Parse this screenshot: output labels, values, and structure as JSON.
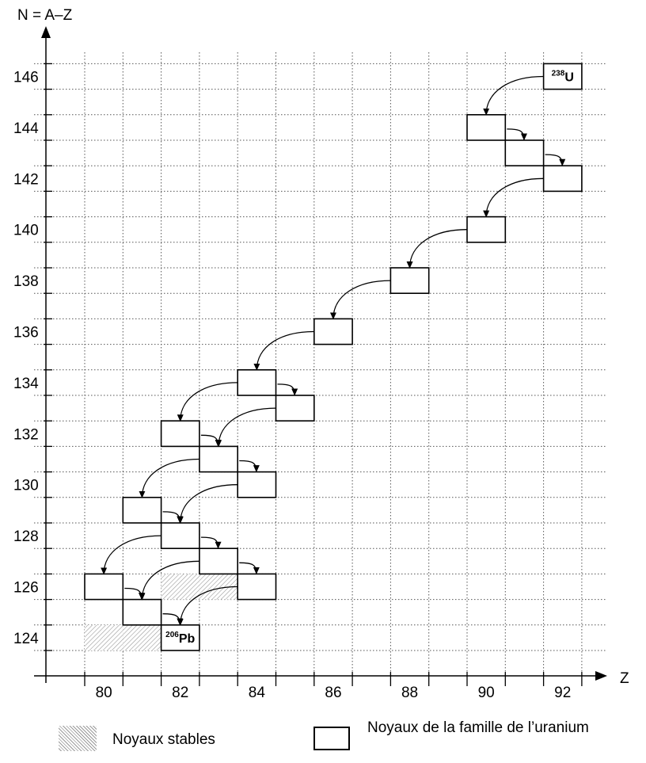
{
  "chart_data": {
    "type": "scatter",
    "x_axis_label": "Z",
    "y_axis_label": "N = A–Z",
    "x_ticks": [
      "80",
      "82",
      "84",
      "86",
      "88",
      "90",
      "92"
    ],
    "y_ticks": [
      "124",
      "126",
      "128",
      "130",
      "132",
      "134",
      "136",
      "138",
      "140",
      "142",
      "144",
      "146"
    ],
    "xlim": [
      79,
      93
    ],
    "ylim": [
      123,
      147
    ],
    "grid": true,
    "uranium_family": [
      {
        "Z": 92,
        "N": 146,
        "mass": "238",
        "symbol": "U"
      },
      {
        "Z": 90,
        "N": 144
      },
      {
        "Z": 91,
        "N": 143
      },
      {
        "Z": 92,
        "N": 142
      },
      {
        "Z": 90,
        "N": 140
      },
      {
        "Z": 88,
        "N": 138
      },
      {
        "Z": 86,
        "N": 136
      },
      {
        "Z": 84,
        "N": 134
      },
      {
        "Z": 85,
        "N": 133
      },
      {
        "Z": 82,
        "N": 132
      },
      {
        "Z": 83,
        "N": 131
      },
      {
        "Z": 84,
        "N": 130
      },
      {
        "Z": 81,
        "N": 129
      },
      {
        "Z": 82,
        "N": 128
      },
      {
        "Z": 83,
        "N": 127
      },
      {
        "Z": 80,
        "N": 126
      },
      {
        "Z": 84,
        "N": 126
      },
      {
        "Z": 81,
        "N": 125
      },
      {
        "Z": 82,
        "N": 124,
        "mass": "206",
        "symbol": "Pb"
      }
    ],
    "stable_nuclei": [
      {
        "Z": 80,
        "N": 124
      },
      {
        "Z": 81,
        "N": 124
      },
      {
        "Z": 82,
        "N": 124
      },
      {
        "Z": 82,
        "N": 126
      },
      {
        "Z": 83,
        "N": 126
      }
    ],
    "alpha_decays": [
      {
        "from": [
          92,
          146
        ],
        "to": [
          90,
          144
        ]
      },
      {
        "from": [
          92,
          142
        ],
        "to": [
          90,
          140
        ]
      },
      {
        "from": [
          90,
          140
        ],
        "to": [
          88,
          138
        ]
      },
      {
        "from": [
          88,
          138
        ],
        "to": [
          86,
          136
        ]
      },
      {
        "from": [
          86,
          136
        ],
        "to": [
          84,
          134
        ]
      },
      {
        "from": [
          84,
          134
        ],
        "to": [
          82,
          132
        ]
      },
      {
        "from": [
          85,
          133
        ],
        "to": [
          83,
          131
        ]
      },
      {
        "from": [
          83,
          131
        ],
        "to": [
          81,
          129
        ]
      },
      {
        "from": [
          84,
          130
        ],
        "to": [
          82,
          128
        ]
      },
      {
        "from": [
          82,
          128
        ],
        "to": [
          80,
          126
        ]
      },
      {
        "from": [
          83,
          127
        ],
        "to": [
          81,
          125
        ]
      },
      {
        "from": [
          84,
          126
        ],
        "to": [
          82,
          124
        ]
      }
    ],
    "beta_decays": [
      {
        "from": [
          90,
          144
        ],
        "to": [
          91,
          143
        ]
      },
      {
        "from": [
          91,
          143
        ],
        "to": [
          92,
          142
        ]
      },
      {
        "from": [
          84,
          134
        ],
        "to": [
          85,
          133
        ]
      },
      {
        "from": [
          82,
          132
        ],
        "to": [
          83,
          131
        ]
      },
      {
        "from": [
          83,
          131
        ],
        "to": [
          84,
          130
        ]
      },
      {
        "from": [
          81,
          129
        ],
        "to": [
          82,
          128
        ]
      },
      {
        "from": [
          82,
          128
        ],
        "to": [
          83,
          127
        ]
      },
      {
        "from": [
          83,
          127
        ],
        "to": [
          84,
          126
        ]
      },
      {
        "from": [
          80,
          126
        ],
        "to": [
          81,
          125
        ]
      },
      {
        "from": [
          81,
          125
        ],
        "to": [
          82,
          124
        ]
      }
    ]
  },
  "legend": {
    "stable_label": "Noyaux stables",
    "family_label": "Noyaux de la famille de l’uranium"
  }
}
